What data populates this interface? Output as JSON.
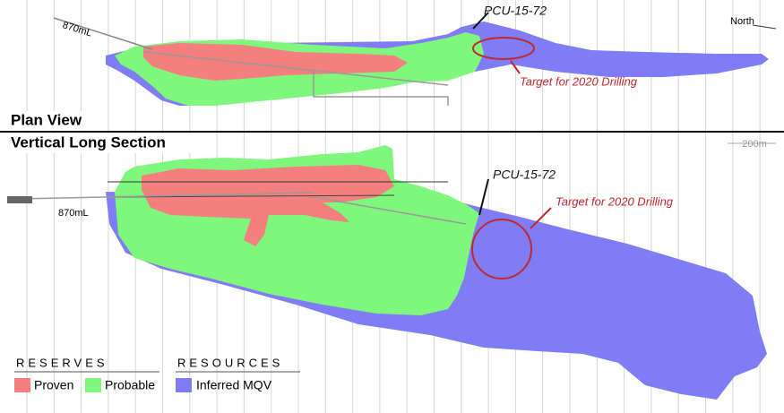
{
  "plan_view": {
    "title": "Plan View",
    "level_label": "870mL",
    "hole_label": "PCU-15-72",
    "target_label": "Target for 2020 Drilling",
    "north_label": "North"
  },
  "long_section": {
    "title": "Vertical Long Section",
    "scale_label": "200m",
    "level_label": "870mL",
    "hole_label": "PCU-15-72",
    "target_label": "Target for 2020 Drilling"
  },
  "legend": {
    "reserves_title": "RESERVES",
    "resources_title": "RESOURCES",
    "items": [
      "Proven",
      "Probable",
      "Inferred MQV"
    ]
  }
}
